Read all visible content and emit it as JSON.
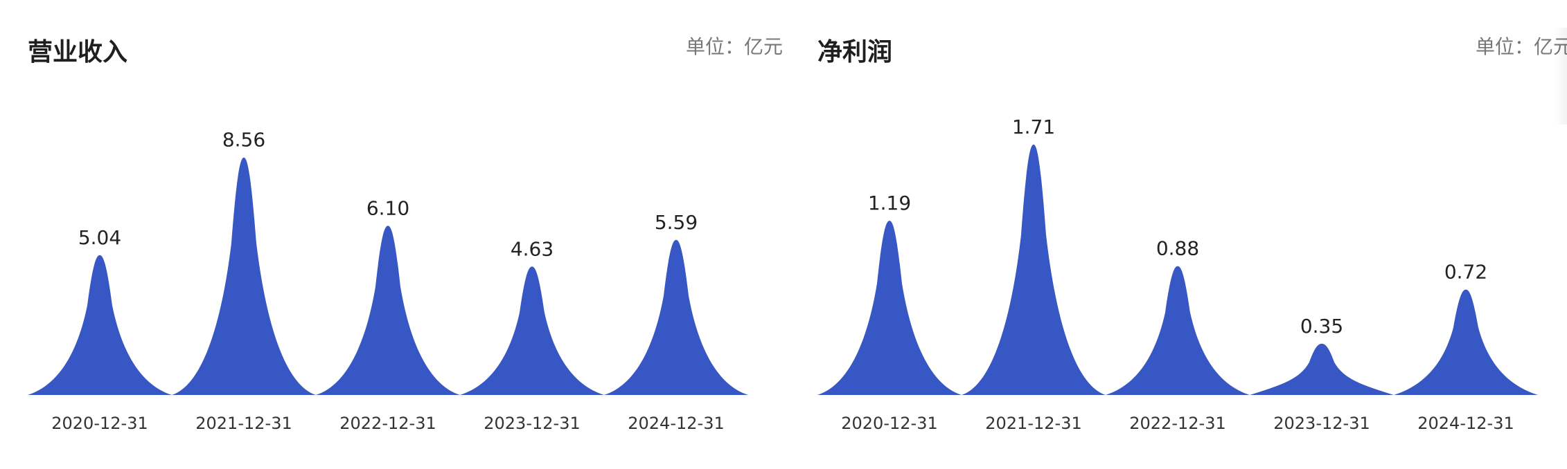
{
  "colors": {
    "peak": "#3758c4",
    "text": "#222222",
    "muted": "#777777"
  },
  "chart_data": [
    {
      "type": "area",
      "title": "营业收入",
      "unit": "单位：亿元",
      "categories": [
        "2020-12-31",
        "2021-12-31",
        "2022-12-31",
        "2023-12-31",
        "2024-12-31"
      ],
      "values": [
        5.04,
        8.56,
        6.1,
        4.63,
        5.59
      ],
      "value_labels": [
        "5.04",
        "8.56",
        "6.10",
        "4.63",
        "5.59"
      ],
      "ylim": [
        0,
        9.5
      ],
      "grid": false,
      "legend": "none"
    },
    {
      "type": "area",
      "title": "净利润",
      "unit": "单位：亿元",
      "categories": [
        "2020-12-31",
        "2021-12-31",
        "2022-12-31",
        "2023-12-31",
        "2024-12-31"
      ],
      "values": [
        1.19,
        1.71,
        0.88,
        0.35,
        0.72
      ],
      "value_labels": [
        "1.19",
        "1.71",
        "0.88",
        "0.35",
        "0.72"
      ],
      "ylim": [
        0,
        1.8
      ],
      "grid": false,
      "legend": "none"
    }
  ]
}
